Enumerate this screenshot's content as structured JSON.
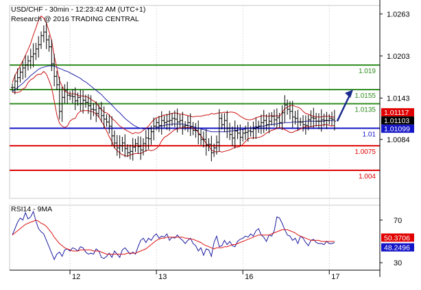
{
  "header": {
    "line1": "USD/CHF - 30min - 12:23:42 AM (UTC+1)",
    "line2": "Research @ 2016 TRADING CENTRAL"
  },
  "colors": {
    "green": "#2e8b1f",
    "red": "#e00000",
    "blue": "#1414c8",
    "price": "#000000",
    "band": "#cc1111",
    "ma": "#2222aa",
    "arrow": "#1a2a8c",
    "rsi": "#1a1aa0",
    "rsi_ma": "#dd1111",
    "tag_last": "#000000",
    "tag_red": "#e00000",
    "tag_blue": "#1414c8"
  },
  "chart_data": [
    {
      "type": "line",
      "subtype": "candlestick-with-bollinger-bands",
      "title": "USD/CHF - 30min - 12:23:42 AM (UTC+1)",
      "ylim": [
        1.0,
        1.0275
      ],
      "y_ticks": [
        "1.0263",
        "1.0203",
        "1.0143",
        "1.0084"
      ],
      "x_ticks": [
        "12",
        "13",
        "16",
        "17"
      ],
      "grid": false,
      "levels": [
        {
          "label": "1.019",
          "value": 1.019,
          "color": "green"
        },
        {
          "label": "1.0155",
          "value": 1.0155,
          "color": "green"
        },
        {
          "label": "1.0135",
          "value": 1.0135,
          "color": "green"
        },
        {
          "label": "1.01",
          "value": 1.01,
          "color": "blue"
        },
        {
          "label": "1.0075",
          "value": 1.0075,
          "color": "red"
        },
        {
          "label": "1.004",
          "value": 1.004,
          "color": "red"
        }
      ],
      "price_tags": [
        {
          "label": "1.01117",
          "value": 1.01117,
          "color": "red"
        },
        {
          "label": "1.01103",
          "value": 1.01103,
          "color": "black"
        },
        {
          "label": "1.01099",
          "value": 1.01099,
          "color": "blue"
        }
      ],
      "close": [
        1.0158,
        1.0167,
        1.0172,
        1.018,
        1.0186,
        1.019,
        1.0196,
        1.0202,
        1.0206,
        1.0213,
        1.0219,
        1.0232,
        1.0237,
        1.0226,
        1.0216,
        1.0192,
        1.0174,
        1.0162,
        1.0124,
        1.0144,
        1.0154,
        1.0147,
        1.0146,
        1.0145,
        1.0139,
        1.0144,
        1.0135,
        1.014,
        1.0137,
        1.0132,
        1.0127,
        1.0126,
        1.0121,
        1.0128,
        1.0118,
        1.0113,
        1.0109,
        1.0103,
        1.0089,
        1.0079,
        1.0072,
        1.0075,
        1.0079,
        1.0071,
        1.0065,
        1.0067,
        1.0073,
        1.0078,
        1.0074,
        1.0069,
        1.0078,
        1.0086,
        1.0085,
        1.0095,
        1.0103,
        1.0108,
        1.0104,
        1.0111,
        1.0108,
        1.011,
        1.0111,
        1.0114,
        1.0113,
        1.0109,
        1.0111,
        1.0103,
        1.0104,
        1.0108,
        1.0102,
        1.0097,
        1.0097,
        1.0091,
        1.0084,
        1.0084,
        1.0076,
        1.0077,
        1.0065,
        1.0072,
        1.008,
        1.0114,
        1.0105,
        1.0111,
        1.01,
        1.0091,
        1.0086,
        1.0096,
        1.0093,
        1.0087,
        1.0093,
        1.0094,
        1.0096,
        1.0095,
        1.0099,
        1.0101,
        1.0103,
        1.0108,
        1.0111,
        1.0105,
        1.011,
        1.0117,
        1.0112,
        1.0115,
        1.0108,
        1.0122,
        1.0133,
        1.0127,
        1.0124,
        1.0116,
        1.0114,
        1.0109,
        1.0109,
        1.0105,
        1.0104,
        1.0112,
        1.0115,
        1.0114,
        1.011,
        1.011,
        1.0112,
        1.0111,
        1.0111,
        1.0114,
        1.0113,
        1.011
      ],
      "upper_band": [
        1.0165,
        1.0175,
        1.0182,
        1.0189,
        1.0196,
        1.0204,
        1.0212,
        1.0221,
        1.0233,
        1.0243,
        1.0254,
        1.026,
        1.0257,
        1.025,
        1.0238,
        1.0225,
        1.0203,
        1.0186,
        1.0168,
        1.016,
        1.0153,
        1.0151,
        1.0149,
        1.0149,
        1.0149,
        1.0147,
        1.0146,
        1.0146,
        1.0145,
        1.0144,
        1.0141,
        1.0139,
        1.0136,
        1.0131,
        1.0127,
        1.0123,
        1.0122,
        1.0119,
        1.0114,
        1.0111,
        1.0107,
        1.0103,
        1.0101,
        1.0098,
        1.0096,
        1.0094,
        1.0092,
        1.0094,
        1.0093,
        1.0094,
        1.0097,
        1.01,
        1.0103,
        1.0108,
        1.0112,
        1.0115,
        1.0116,
        1.0117,
        1.0119,
        1.0119,
        1.012,
        1.0121,
        1.0122,
        1.0121,
        1.012,
        1.012,
        1.0119,
        1.0118,
        1.0117,
        1.0116,
        1.0117,
        1.0117,
        1.0117,
        1.0118,
        1.0119,
        1.0119,
        1.0121,
        1.012,
        1.0121,
        1.0122,
        1.0122,
        1.0123,
        1.0122,
        1.0123,
        1.0123,
        1.0122,
        1.012,
        1.0117,
        1.0115,
        1.0113,
        1.0112,
        1.0112,
        1.0113,
        1.0115,
        1.0116,
        1.0117,
        1.0118,
        1.0117,
        1.0117,
        1.0118,
        1.0117,
        1.0118,
        1.0117,
        1.0122,
        1.0128,
        1.013,
        1.0132,
        1.0133,
        1.0131,
        1.013,
        1.0128,
        1.0124,
        1.0121,
        1.012,
        1.0118,
        1.0117,
        1.0116,
        1.0116,
        1.0116,
        1.0117,
        1.0117,
        1.0117,
        1.0116,
        1.0116
      ],
      "lower_band": [
        1.0151,
        1.0151,
        1.0151,
        1.0152,
        1.0156,
        1.0158,
        1.0165,
        1.0169,
        1.0171,
        1.0175,
        1.0177,
        1.0177,
        1.0181,
        1.0177,
        1.0168,
        1.0158,
        1.0139,
        1.0119,
        1.0107,
        1.0103,
        1.0101,
        1.0103,
        1.011,
        1.0113,
        1.0114,
        1.0121,
        1.0124,
        1.0125,
        1.0125,
        1.0125,
        1.0124,
        1.0123,
        1.012,
        1.0116,
        1.011,
        1.0104,
        1.0096,
        1.0088,
        1.0081,
        1.0072,
        1.0068,
        1.0065,
        1.0062,
        1.0061,
        1.006,
        1.0062,
        1.0063,
        1.0064,
        1.0064,
        1.0064,
        1.0066,
        1.0068,
        1.0069,
        1.0068,
        1.0069,
        1.0071,
        1.0075,
        1.0082,
        1.0087,
        1.0089,
        1.0092,
        1.0095,
        1.0098,
        1.0099,
        1.01,
        1.0101,
        1.0101,
        1.0101,
        1.0101,
        1.01,
        1.0098,
        1.0094,
        1.0089,
        1.0084,
        1.0078,
        1.0075,
        1.0069,
        1.0067,
        1.0066,
        1.0067,
        1.0066,
        1.0067,
        1.0068,
        1.0069,
        1.0071,
        1.0073,
        1.0073,
        1.0074,
        1.0077,
        1.0081,
        1.0085,
        1.0086,
        1.0086,
        1.0086,
        1.0087,
        1.0088,
        1.009,
        1.0093,
        1.0095,
        1.0097,
        1.0098,
        1.01,
        1.0101,
        1.01,
        1.0098,
        1.0096,
        1.0094,
        1.0094,
        1.0096,
        1.0097,
        1.0099,
        1.0101,
        1.0102,
        1.0102,
        1.0102,
        1.0103,
        1.0104,
        1.0104,
        1.0104,
        1.0105,
        1.0105,
        1.0104,
        1.0103,
        1.0104
      ],
      "ma_line": [
        1.0152,
        1.0155,
        1.0158,
        1.0161,
        1.0164,
        1.0168,
        1.0171,
        1.0175,
        1.0178,
        1.0181,
        1.0184,
        1.0186,
        1.0187,
        1.0188,
        1.0189,
        1.0189,
        1.0188,
        1.0187,
        1.0185,
        1.0184,
        1.0182,
        1.0181,
        1.0179,
        1.0177,
        1.0175,
        1.0173,
        1.0171,
        1.0168,
        1.0166,
        1.0163,
        1.016,
        1.0157,
        1.0154,
        1.0151,
        1.0148,
        1.0144,
        1.014,
        1.0137,
        1.0133,
        1.0129,
        1.0125,
        1.0122,
        1.0118,
        1.0114,
        1.0111,
        1.0108,
        1.0105,
        1.0103,
        1.0101,
        1.01,
        1.0099,
        1.0099,
        1.0099,
        1.0099,
        1.01,
        1.0101,
        1.0102,
        1.0103,
        1.0104,
        1.0105,
        1.0105,
        1.0106,
        1.0106,
        1.0106,
        1.0106,
        1.0106,
        1.0105,
        1.0104,
        1.0103,
        1.0102,
        1.0101,
        1.01,
        1.0099,
        1.0098,
        1.0097,
        1.0096,
        1.0095,
        1.0095,
        1.0095,
        1.0095,
        1.0095,
        1.0095,
        1.0095,
        1.0096,
        1.0096,
        1.0097,
        1.0097,
        1.0098,
        1.0098,
        1.0099,
        1.01,
        1.01,
        1.0101,
        1.0102,
        1.0102,
        1.0103,
        1.0103,
        1.0104,
        1.0105,
        1.0105,
        1.0106,
        1.0106,
        1.0107,
        1.0107,
        1.0108,
        1.0108,
        1.0108,
        1.0109,
        1.0109,
        1.0109,
        1.0109,
        1.0109,
        1.011,
        1.011,
        1.011,
        1.011,
        1.011,
        1.011,
        1.011,
        1.011,
        1.0111,
        1.0111,
        1.0111,
        1.0111
      ]
    },
    {
      "type": "line",
      "title": "RSI14 - 9MA",
      "ylim": [
        23,
        84
      ],
      "y_ticks": [
        "70",
        "30"
      ],
      "x_ticks": [
        "12",
        "13",
        "16",
        "17"
      ],
      "tags": [
        {
          "label": "50.3706",
          "value": 50.3706,
          "color": "red"
        },
        {
          "label": "48.2496",
          "value": 48.2496,
          "color": "blue"
        }
      ],
      "series": [
        {
          "name": "RSI14",
          "color": "rsi",
          "values": [
            56,
            62,
            68,
            72,
            70,
            77,
            71,
            73,
            78,
            69,
            62,
            59,
            57,
            51,
            45,
            39,
            33,
            38,
            40,
            36,
            42,
            43,
            41,
            44,
            43,
            41,
            45,
            44,
            40,
            38,
            39,
            38,
            43,
            41,
            35,
            34,
            36,
            39,
            35,
            41,
            38,
            35,
            42,
            44,
            41,
            38,
            40,
            38,
            45,
            51,
            53,
            49,
            53,
            51,
            55,
            57,
            53,
            55,
            54,
            57,
            51,
            54,
            53,
            56,
            53,
            51,
            48,
            51,
            53,
            48,
            46,
            41,
            44,
            37,
            43,
            42,
            36,
            49,
            55,
            45,
            46,
            51,
            47,
            50,
            46,
            45,
            50,
            52,
            53,
            55,
            54,
            57,
            55,
            60,
            62,
            56,
            54,
            50,
            56,
            55,
            60,
            73,
            72,
            67,
            61,
            56,
            55,
            51,
            53,
            48,
            55,
            53,
            49,
            46,
            51,
            52,
            49,
            48,
            48,
            47,
            50,
            48,
            48,
            49
          ]
        },
        {
          "name": "9MA",
          "color": "rsi_ma",
          "values": [
            56,
            58,
            60,
            62,
            64,
            66,
            67,
            68,
            69,
            70,
            69,
            67,
            66,
            64,
            61,
            58,
            54,
            51,
            48,
            46,
            44,
            43,
            42,
            41,
            41,
            41,
            42,
            42,
            42,
            42,
            42,
            41,
            41,
            41,
            40,
            39,
            38,
            38,
            38,
            38,
            38,
            38,
            38,
            38,
            39,
            39,
            39,
            39,
            40,
            41,
            42,
            43,
            45,
            47,
            49,
            51,
            52,
            53,
            53,
            54,
            54,
            54,
            54,
            54,
            54,
            54,
            53,
            53,
            52,
            52,
            51,
            50,
            49,
            47,
            46,
            45,
            44,
            43,
            44,
            44,
            44,
            45,
            45,
            46,
            47,
            47,
            48,
            49,
            50,
            51,
            52,
            53,
            54,
            55,
            56,
            56,
            56,
            56,
            56,
            57,
            58,
            59,
            60,
            61,
            61,
            61,
            60,
            59,
            58,
            56,
            55,
            54,
            53,
            52,
            51,
            51,
            51,
            51,
            50,
            50,
            50,
            50,
            50,
            50
          ]
        }
      ]
    }
  ]
}
